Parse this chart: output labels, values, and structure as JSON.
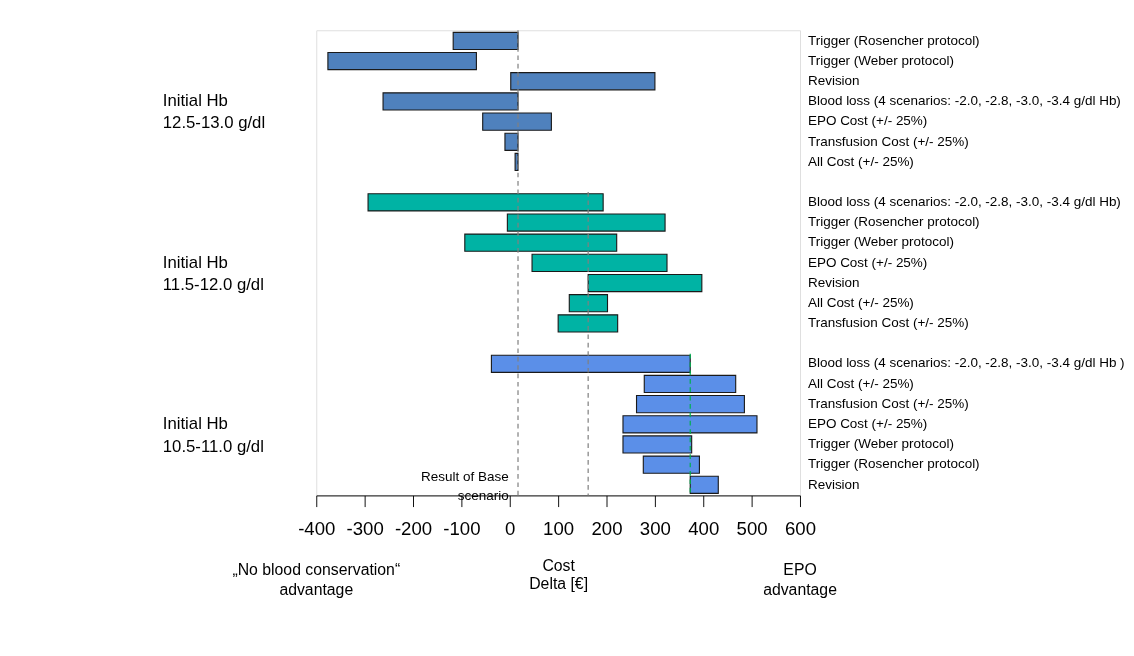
{
  "chart_data": {
    "type": "bar",
    "orientation": "horizontal",
    "categories": [
      "Trigger (Rosencher protocol)",
      "Trigger (Weber protocol)",
      "Revision",
      "Blood loss (4 scenarios: -2.0, -2.8, -3.0, -3.4 g/dl Hb)",
      "EPO Cost (+/- 25%)",
      "Transfusion Cost  (+/- 25%)",
      "All Cost (+/- 25%)",
      null,
      "Blood loss (4 scenarios: -2.0, -2.8, -3.0, -3.4 g/dl Hb)",
      "Trigger (Rosencher protocol)",
      "Trigger (Weber protocol)",
      "EPO Cost (+/- 25%)",
      "Revision",
      "All Cost (+/- 25%)",
      "Transfusion Cost  (+/- 25%)",
      null,
      "Blood loss (4 scenarios: -2.0, -2.8, -3.0, -3.4 g/dl Hb )",
      "All Cost (+/- 25%)",
      "Transfusion Cost  (+/- 25%)",
      "EPO Cost (+/- 25%)",
      "Trigger (Weber protocol)",
      "Trigger (Rosencher protocol)",
      "Revision"
    ],
    "base": [
      -117,
      -376,
      2,
      -262,
      -56,
      -10,
      11,
      null,
      -293,
      -5,
      -93,
      46,
      162,
      123,
      100,
      null,
      -38,
      278,
      262,
      234,
      234,
      276,
      373
    ],
    "values": [
      134,
      307,
      298,
      279,
      142,
      27,
      6,
      null,
      486,
      326,
      314,
      279,
      235,
      79,
      123,
      null,
      411,
      189,
      223,
      277,
      142,
      116,
      58
    ],
    "colors": [
      "#4f81bd",
      "#4f81bd",
      "#4f81bd",
      "#4f81bd",
      "#4f81bd",
      "#4f81bd",
      "#4f81bd",
      null,
      "#00b3a4",
      "#00b3a4",
      "#00b3a4",
      "#00b3a4",
      "#00b3a4",
      "#00b3a4",
      "#00b3a4",
      null,
      "#5b8fe8",
      "#5b8fe8",
      "#5b8fe8",
      "#5b8fe8",
      "#5b8fe8",
      "#5b8fe8",
      "#5b8fe8"
    ],
    "xlim": [
      -400,
      600
    ],
    "xticks": [
      -400,
      -300,
      -200,
      -100,
      0,
      100,
      200,
      300,
      400,
      500,
      600
    ],
    "xlabel": "Cost\nDelta [€]",
    "ref_lines": [
      {
        "axis": "x",
        "value": 17,
        "label": "Result of Base\nscenario",
        "color": "#808080",
        "line_style": "dashed"
      },
      {
        "axis": "x",
        "value": 162,
        "color": "#808080",
        "line_style": "dashed"
      },
      {
        "axis": "x",
        "value": 373,
        "color": "#00b050",
        "line_style": "dashed"
      }
    ],
    "annotations": [
      "Initial Hb\n12.5-13.0 g/dl",
      "Initial Hb\n11.5-12.0 g/dl",
      "Initial Hb\n10.5-11.0 g/dl",
      "„No blood conservation“\nadvantage",
      "EPO\nadvantage"
    ],
    "grid": false
  }
}
